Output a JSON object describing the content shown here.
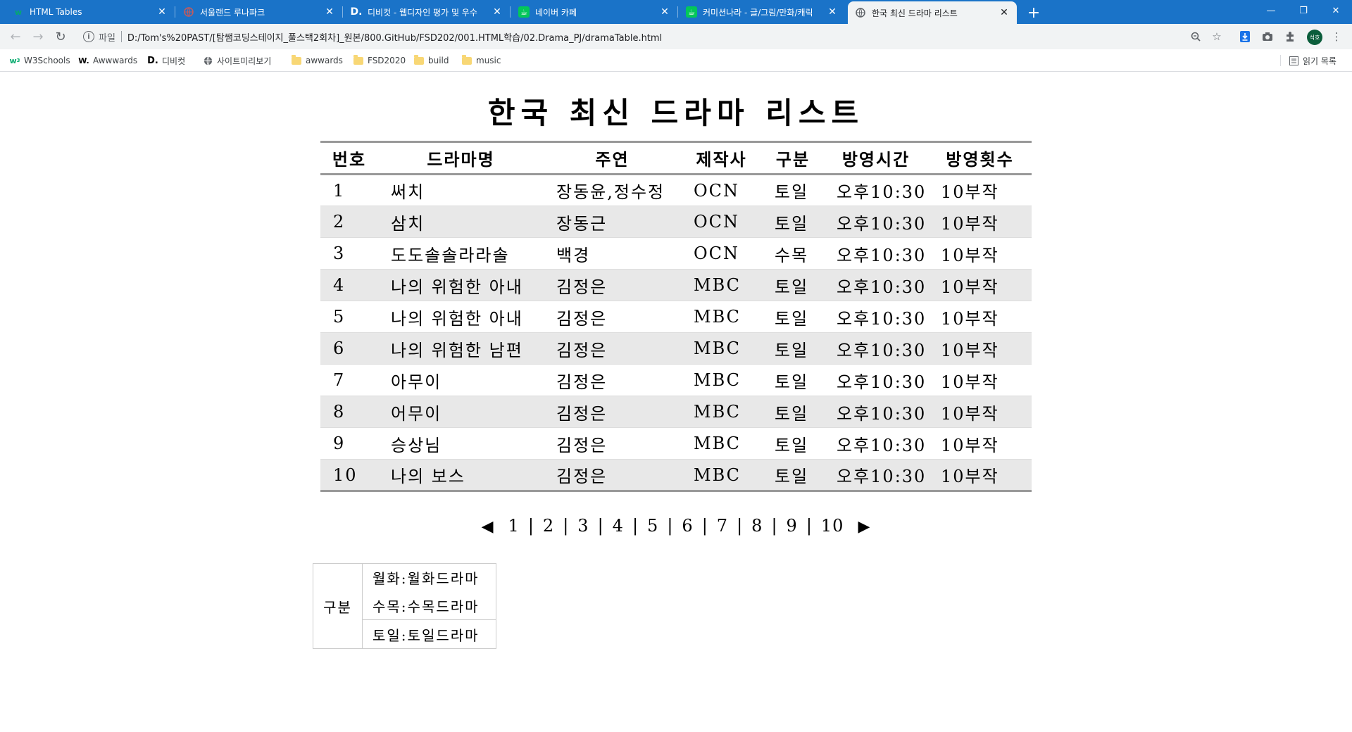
{
  "browser": {
    "tabs": [
      {
        "label": "HTML Tables",
        "icon": "w3schools-icon"
      },
      {
        "label": "서울랜드 루나파크",
        "icon": "globe-icon"
      },
      {
        "label": "디비컷 - 웹디자인 평가 및 우수",
        "icon": "dbcut-icon"
      },
      {
        "label": "네이버 카페",
        "icon": "naver-cafe-icon"
      },
      {
        "label": "커미션나라 - 글/그림/만화/캐릭",
        "icon": "naver-cafe-icon"
      },
      {
        "label": "한국 최신 드라마 리스트",
        "icon": "globe-icon",
        "active": true
      }
    ],
    "address": {
      "scheme_label": "파일",
      "url": "D:/Tom's%20PAST/[탐쌤코딩스테이지_풀스택2회차]_원본/800.GitHub/FSD202/001.HTML학습/02.Drama_PJ/dramaTable.html"
    },
    "profile_initials": "석호",
    "bookmarks": [
      {
        "label": "W3Schools",
        "icon": "w3schools-icon"
      },
      {
        "label": "Awwwards",
        "icon": "awwwards-icon"
      },
      {
        "label": "디비컷",
        "icon": "dbcut-icon"
      },
      {
        "label": "사이트미리보기",
        "icon": "globe-icon"
      },
      {
        "label": "awwards",
        "icon": "folder-icon"
      },
      {
        "label": "FSD2020",
        "icon": "folder-icon"
      },
      {
        "label": "build",
        "icon": "folder-icon"
      },
      {
        "label": "music",
        "icon": "folder-icon"
      }
    ],
    "reading_list": "읽기 목록"
  },
  "page": {
    "title": "한국 최신 드라마 리스트",
    "table": {
      "headers": [
        "번호",
        "드라마명",
        "주연",
        "제작사",
        "구분",
        "방영시간",
        "방영횟수"
      ],
      "rows": [
        [
          "1",
          "써치",
          "장동윤,정수정",
          "OCN",
          "토일",
          "오후10:30",
          "10부작"
        ],
        [
          "2",
          "삼치",
          "장동근",
          "OCN",
          "토일",
          "오후10:30",
          "10부작"
        ],
        [
          "3",
          "도도솔솔라라솔",
          "백경",
          "OCN",
          "수목",
          "오후10:30",
          "10부작"
        ],
        [
          "4",
          "나의 위험한 아내",
          "김정은",
          "MBC",
          "토일",
          "오후10:30",
          "10부작"
        ],
        [
          "5",
          "나의 위험한 아내",
          "김정은",
          "MBC",
          "토일",
          "오후10:30",
          "10부작"
        ],
        [
          "6",
          "나의 위험한 남편",
          "김정은",
          "MBC",
          "토일",
          "오후10:30",
          "10부작"
        ],
        [
          "7",
          "아무이",
          "김정은",
          "MBC",
          "토일",
          "오후10:30",
          "10부작"
        ],
        [
          "8",
          "어무이",
          "김정은",
          "MBC",
          "토일",
          "오후10:30",
          "10부작"
        ],
        [
          "9",
          "승상님",
          "김정은",
          "MBC",
          "토일",
          "오후10:30",
          "10부작"
        ],
        [
          "10",
          "나의 보스",
          "김정은",
          "MBC",
          "토일",
          "오후10:30",
          "10부작"
        ]
      ]
    },
    "pagination": {
      "prev": "◀",
      "next": "▶",
      "pages": [
        "1",
        "2",
        "3",
        "4",
        "5",
        "6",
        "7",
        "8",
        "9",
        "10"
      ]
    },
    "legend": {
      "header": "구분",
      "items": [
        "월화:월화드라마",
        "수목:수목드라마",
        "토일:토일드라마"
      ]
    }
  }
}
